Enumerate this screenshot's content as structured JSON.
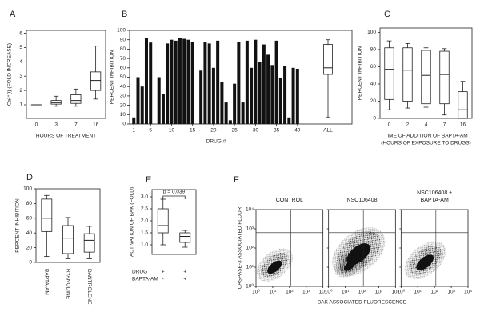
{
  "chart_data": [
    {
      "type": "box",
      "panel": "A",
      "ylabel": "Ca²⁺(i)  (FOLD INCREASE)",
      "xlabel": "HOURS OF TREATMENT",
      "categories": [
        "0",
        "3",
        "7",
        "16"
      ],
      "boxes": [
        {
          "min": 1,
          "q1": 1,
          "median": 1,
          "q3": 1,
          "max": 1
        },
        {
          "min": 0.9,
          "q1": 1.05,
          "median": 1.15,
          "q3": 1.3,
          "max": 1.6
        },
        {
          "min": 0.9,
          "q1": 1.1,
          "median": 1.3,
          "q3": 1.7,
          "max": 2.1
        },
        {
          "min": 1.4,
          "q1": 2.0,
          "median": 2.7,
          "q3": 3.3,
          "max": 5.1
        }
      ],
      "ylim": [
        0.05,
        6.2
      ],
      "yticks": [
        1,
        2,
        3,
        4,
        5,
        6
      ]
    },
    {
      "type": "bar",
      "panel": "B",
      "xlabel": "DRUG #",
      "ylabel": "PERCENT INHIBITION",
      "x": [
        1,
        2,
        3,
        4,
        5,
        6,
        7,
        8,
        9,
        10,
        11,
        12,
        13,
        14,
        15,
        16,
        17,
        18,
        19,
        20,
        21,
        22,
        23,
        24,
        25,
        26,
        27,
        28,
        29,
        30,
        31,
        32,
        33,
        34,
        35,
        36,
        37,
        38,
        39,
        40
      ],
      "values": [
        7,
        50,
        40,
        92,
        87,
        null,
        50,
        32,
        86,
        90,
        89,
        92,
        91,
        90,
        88,
        null,
        57,
        88,
        86,
        60,
        89,
        45,
        23,
        4,
        43,
        88,
        23,
        89,
        60,
        90,
        66,
        85,
        74,
        63,
        89,
        49,
        62,
        7,
        60,
        59
      ],
      "color": "#111111",
      "xlim": [
        0,
        53
      ],
      "xticks": [
        1,
        5,
        10,
        15,
        20,
        25,
        30,
        35,
        40
      ],
      "ylim": [
        0,
        100
      ],
      "yticks": [
        0,
        10,
        20,
        30,
        40,
        50,
        60,
        70,
        80,
        90,
        100
      ],
      "summary": {
        "label": "ALL",
        "min": 7,
        "q1": 53,
        "median": 60,
        "q3": 85,
        "max": 90
      }
    },
    {
      "type": "box",
      "panel": "C",
      "ylabel": "PERCENT INHIBITION",
      "xlabel": [
        "TIME OF ADDITION OF BAPTA-AM",
        "(HOURS OF EXPOSURE TO DRUGS)"
      ],
      "categories": [
        "0",
        "2",
        "4",
        "7",
        "16"
      ],
      "boxes": [
        {
          "min": 10,
          "q1": 22,
          "median": 57,
          "q3": 82,
          "max": 90
        },
        {
          "min": 12,
          "q1": 20,
          "median": 56,
          "q3": 82,
          "max": 87
        },
        {
          "min": 13,
          "q1": 17,
          "median": 50,
          "q3": 79,
          "max": 82
        },
        {
          "min": 4,
          "q1": 17,
          "median": 51,
          "q3": 78,
          "max": 81
        },
        {
          "min": 0,
          "q1": 0,
          "median": 10,
          "q3": 31,
          "max": 43
        }
      ],
      "ylim": [
        0,
        105
      ],
      "yticks": [
        0,
        20,
        40,
        60,
        80,
        100
      ]
    },
    {
      "type": "box",
      "panel": "D",
      "ylabel": "PERCENT INHIBITION",
      "categories": [
        "BAPTA-AM",
        "RYANODINE",
        "DANTROLENE"
      ],
      "boxes": [
        {
          "min": 8,
          "q1": 42,
          "median": 60,
          "q3": 86,
          "max": 91
        },
        {
          "min": 5,
          "q1": 12,
          "median": 33,
          "q3": 50,
          "max": 61
        },
        {
          "min": 5,
          "q1": 14,
          "median": 30,
          "q3": 39,
          "max": 49
        }
      ],
      "ylim": [
        0,
        100
      ],
      "yticks": [
        0,
        20,
        40,
        60,
        80,
        100
      ]
    },
    {
      "type": "box",
      "panel": "E",
      "ylabel": "ACTIVATION OF BAK (FOLD)",
      "annotation": "p = 0.039",
      "categories": [
        null,
        null
      ],
      "boxes": [
        {
          "min": 1.0,
          "q1": 1.5,
          "median": 1.8,
          "q3": 2.5,
          "max": 2.9
        },
        {
          "min": 0.9,
          "q1": 1.1,
          "median": 1.35,
          "q3": 1.5,
          "max": 1.6
        }
      ],
      "conditions": [
        {
          "name": "DRUG",
          "signs": [
            "+",
            "+"
          ]
        },
        {
          "name": "BAPTA-AM",
          "signs": [
            "-",
            "+"
          ]
        }
      ],
      "ylim": [
        0.6,
        3.3
      ],
      "yticks": [
        {
          "value": 1,
          "label": "1.0"
        },
        1.5,
        {
          "value": 2,
          "label": "2.0"
        },
        2.5,
        {
          "value": 3,
          "label": "3.0"
        }
      ]
    },
    {
      "type": "flow",
      "panel": "F",
      "xlabel": "BAK ASSOCIATED FLUORESCENCE",
      "ylabel": "CASPASE-3 ASSOCIATED FLOUR",
      "plots": [
        {
          "title": [
            "CONTROL"
          ]
        },
        {
          "title": [
            "NSC106408"
          ]
        },
        {
          "title": [
            "NSC106408 +",
            "BAPTA-AM"
          ]
        }
      ],
      "log_scale": true,
      "xlim": [
        1,
        10000
      ],
      "ylim": [
        1,
        10000
      ],
      "xticks": [
        {
          "value": 1,
          "label": "10⁰"
        },
        {
          "value": 10,
          "label": "10¹"
        },
        {
          "value": 100,
          "label": "10²"
        },
        {
          "value": 1000,
          "label": "10³"
        },
        {
          "value": 10000,
          "label": "10⁴"
        }
      ],
      "yticks": [
        {
          "value": 1,
          "label": "10⁰"
        },
        {
          "value": 10,
          "label": "10¹"
        },
        {
          "value": 100,
          "label": "10²"
        },
        {
          "value": 1000,
          "label": "10³"
        },
        {
          "value": 10000,
          "label": "10⁴"
        }
      ]
    }
  ]
}
